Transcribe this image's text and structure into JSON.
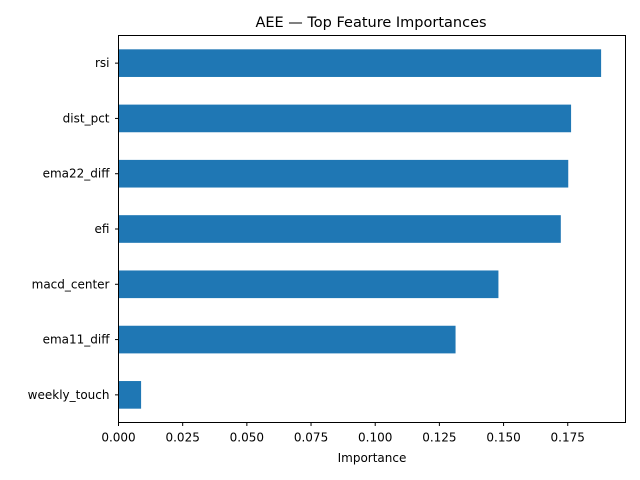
{
  "chart_data": {
    "type": "bar",
    "orientation": "horizontal",
    "title": "AEE — Top Feature Importances",
    "xlabel": "Importance",
    "ylabel": "",
    "categories": [
      "rsi",
      "dist_pct",
      "ema22_diff",
      "efi",
      "macd_center",
      "ema11_diff",
      "weekly_touch"
    ],
    "values": [
      0.188,
      0.1763,
      0.1752,
      0.1723,
      0.148,
      0.1313,
      0.0088
    ],
    "xlim": [
      0,
      0.1975
    ],
    "xticks": [
      0.0,
      0.025,
      0.05,
      0.075,
      0.1,
      0.125,
      0.15,
      0.175
    ],
    "xtick_labels": [
      "0.000",
      "0.025",
      "0.050",
      "0.075",
      "0.100",
      "0.125",
      "0.150",
      "0.175"
    ],
    "grid": false,
    "bar_color": "#1f77b4"
  }
}
